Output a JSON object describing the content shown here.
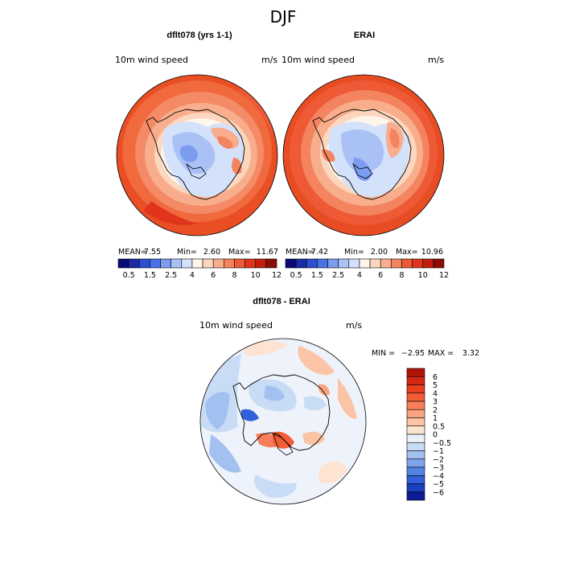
{
  "page": {
    "title": "DJF"
  },
  "chart_data": [
    {
      "type": "heatmap",
      "title": "dflt078 (yrs 1-1)",
      "variable": "10m wind speed",
      "units": "m/s",
      "stats": {
        "mean_label": "MEAN=",
        "mean": "7.55",
        "min_label": "Min=",
        "min": "2.60",
        "max_label": "Max=",
        "max": "11.67"
      },
      "colorbar": {
        "ticks": [
          "0.5",
          "1.5",
          "2.5",
          "4",
          "6",
          "8",
          "10",
          "12"
        ],
        "colors": [
          "#0a0a78",
          "#1c2aa8",
          "#2e4fd0",
          "#4a72e6",
          "#7c9cf0",
          "#a9c1f5",
          "#d3e1fa",
          "#fff5ea",
          "#fcd7be",
          "#f8ae8c",
          "#f48460",
          "#ee5a35",
          "#e0351c",
          "#c21d0e",
          "#8a0d05"
        ]
      },
      "map": {
        "projection": "south-polar-stereographic",
        "region": "Antarctica"
      }
    },
    {
      "type": "heatmap",
      "title": "ERAI",
      "variable": "10m wind speed",
      "units": "m/s",
      "stats": {
        "mean_label": "MEAN=",
        "mean": "7.42",
        "min_label": "Min=",
        "min": "2.00",
        "max_label": "Max=",
        "max": "10.96"
      },
      "colorbar": {
        "ticks": [
          "0.5",
          "1.5",
          "2.5",
          "4",
          "6",
          "8",
          "10",
          "12"
        ],
        "colors": [
          "#0a0a78",
          "#1c2aa8",
          "#2e4fd0",
          "#4a72e6",
          "#7c9cf0",
          "#a9c1f5",
          "#d3e1fa",
          "#fff5ea",
          "#fcd7be",
          "#f8ae8c",
          "#f48460",
          "#ee5a35",
          "#e0351c",
          "#c21d0e",
          "#8a0d05"
        ]
      },
      "map": {
        "projection": "south-polar-stereographic",
        "region": "Antarctica"
      }
    },
    {
      "type": "heatmap",
      "title": "dflt078 - ERAI",
      "variable": "10m wind speed",
      "units": "m/s",
      "stats": {
        "min_label": "MIN =",
        "min": "−2.95",
        "max_label": "MAX =",
        "max": "3.32"
      },
      "colorbar": {
        "orientation": "vertical",
        "ticks": [
          "6",
          "5",
          "4",
          "3",
          "2",
          "1",
          "0.5",
          "0",
          "−0.5",
          "−1",
          "−2",
          "−3",
          "−4",
          "−5",
          "−6"
        ],
        "colors": [
          "#b01408",
          "#d02a14",
          "#e6401f",
          "#f25c37",
          "#f77f5a",
          "#f9a381",
          "#fbc4a6",
          "#fde3d2",
          "#eaf1fb",
          "#c9dcf6",
          "#a3c1f0",
          "#7da3ea",
          "#5684e4",
          "#3160d8",
          "#1a3fc0",
          "#0c1c96"
        ]
      },
      "map": {
        "projection": "south-polar-stereographic",
        "region": "Antarctica"
      }
    }
  ]
}
